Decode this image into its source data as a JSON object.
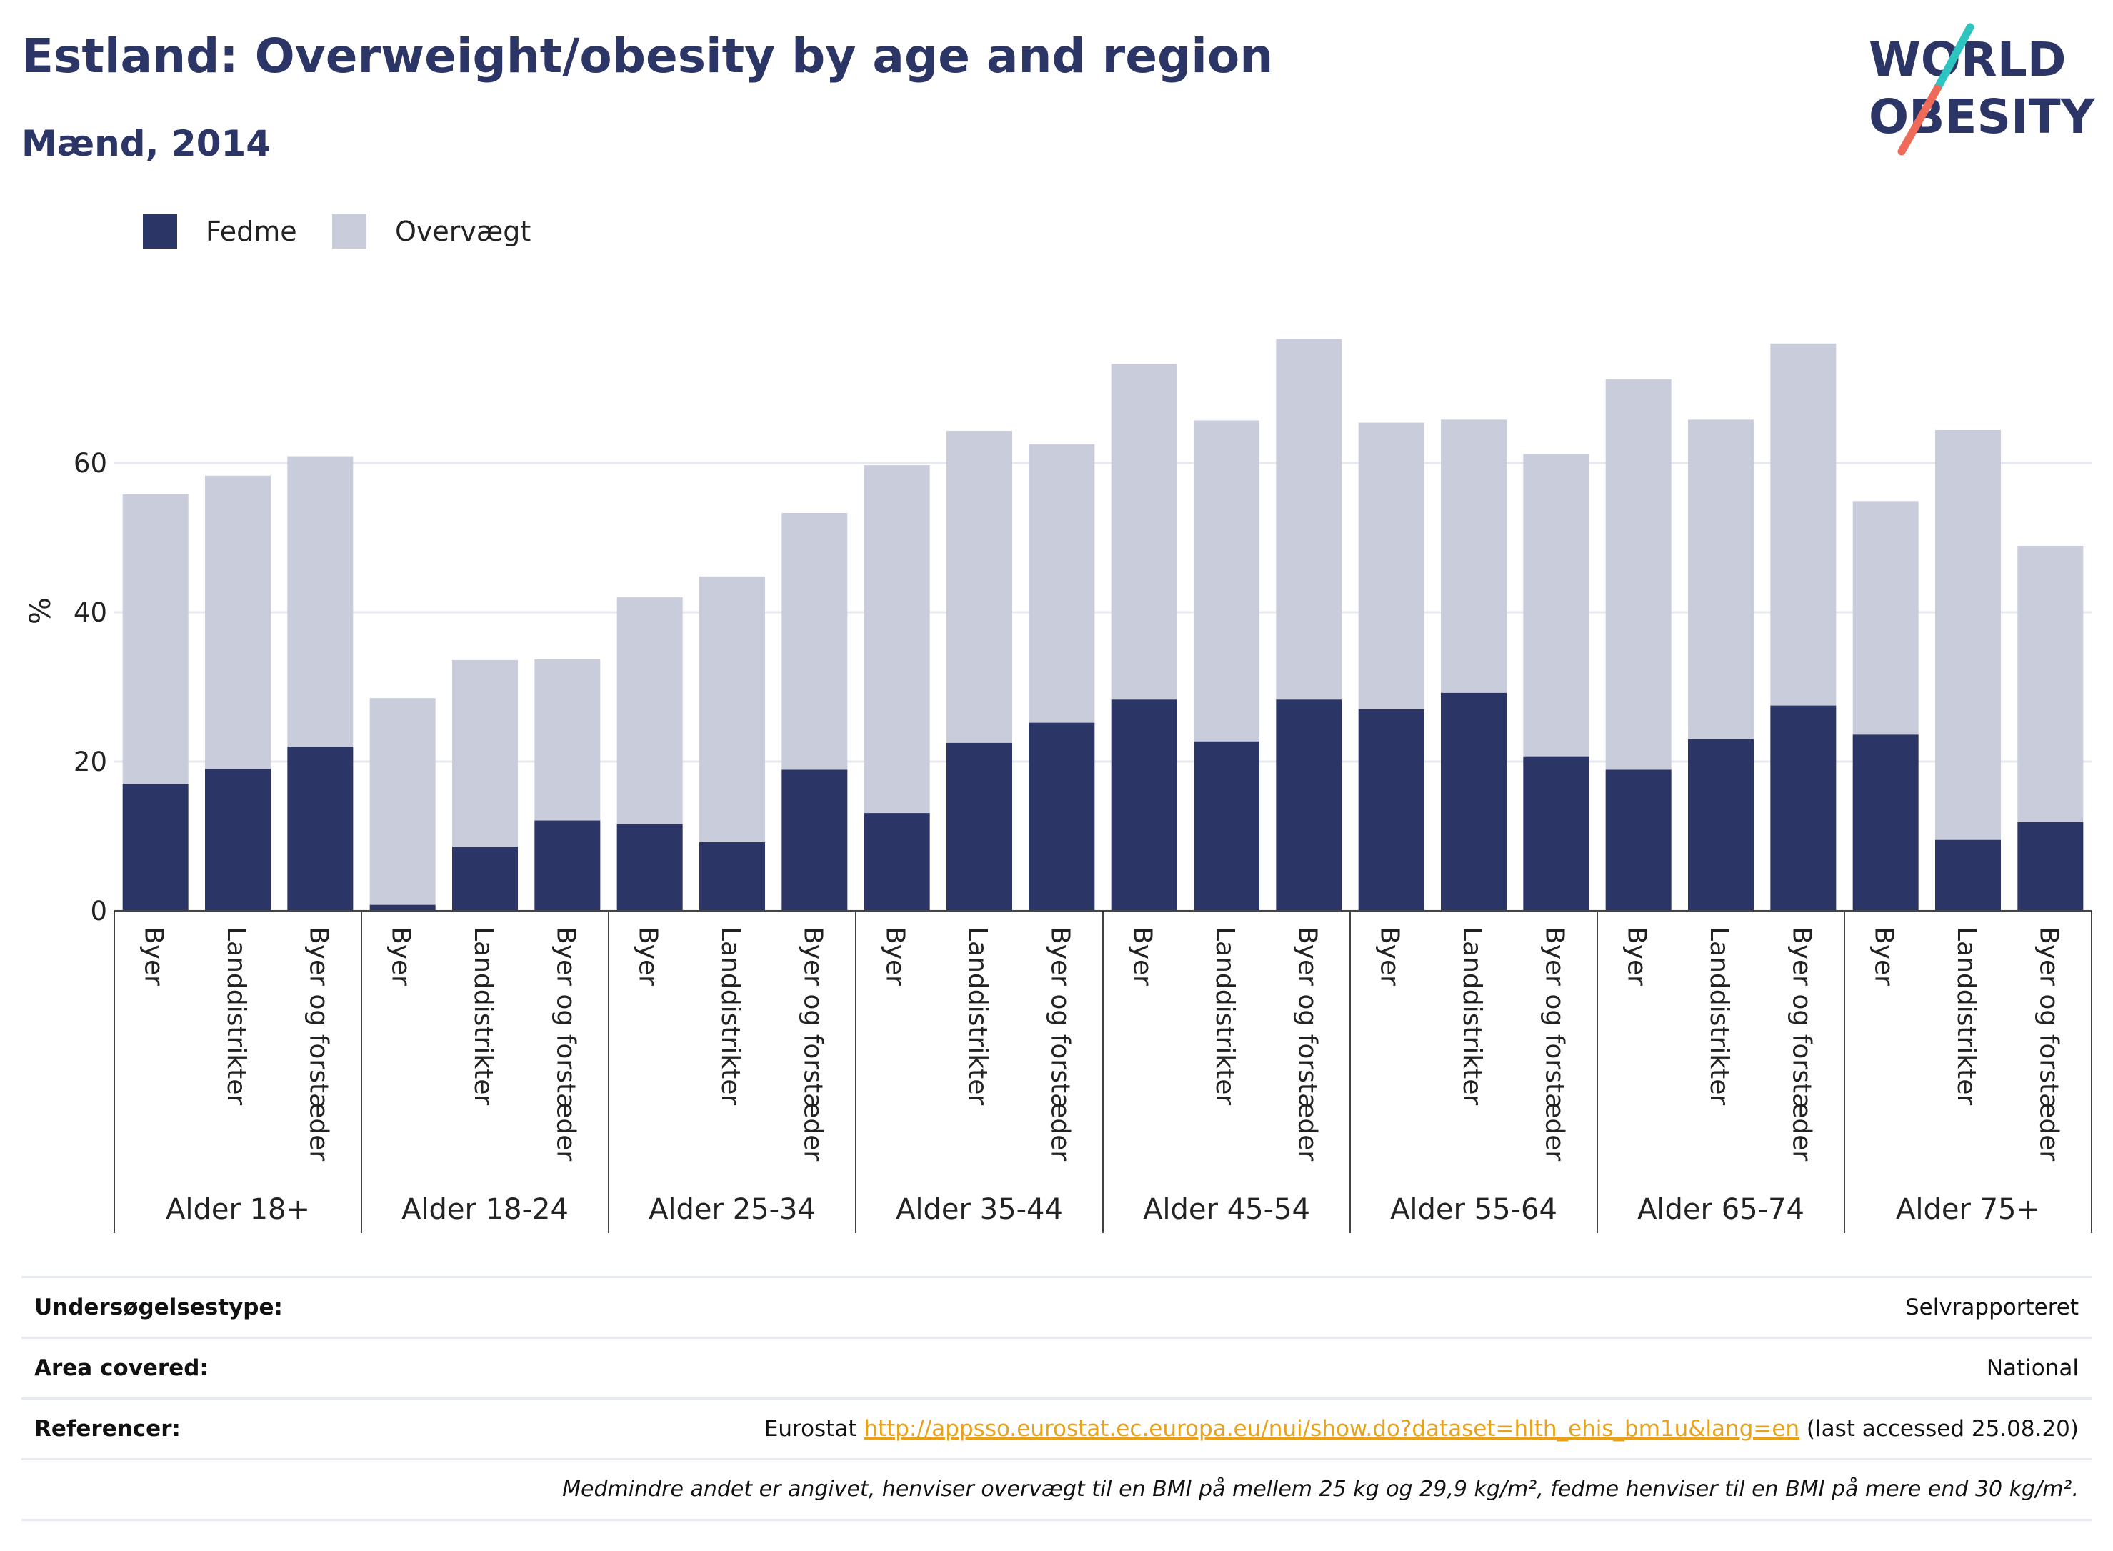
{
  "header": {
    "title": "Estland: Overweight/obesity by age and region",
    "subtitle": "Mænd, 2014"
  },
  "logo": {
    "line1": "WORLD",
    "line2": "OBESITY",
    "text_color": "#2b3566",
    "slash_color_top": "#2ec4c0",
    "slash_color_bottom": "#ee6b5a"
  },
  "colors": {
    "fedme": "#2b3566",
    "overvaegt": "#c9ccda",
    "grid": "#e6e8ef",
    "axis_text": "#222222"
  },
  "chart_data": {
    "type": "bar",
    "stacked": true,
    "ylabel": "%",
    "ylim": [
      0,
      80
    ],
    "yticks": [
      0,
      20,
      40,
      60
    ],
    "grid": true,
    "legend": [
      "Fedme",
      "Overvægt"
    ],
    "legend_position": "top-left",
    "groups": [
      {
        "label": "Alder 18+",
        "categories": [
          "Byer",
          "Landdistrikter",
          "Byer og forstæder"
        ]
      },
      {
        "label": "Alder 18-24",
        "categories": [
          "Byer",
          "Landdistrikter",
          "Byer og forstæder"
        ]
      },
      {
        "label": "Alder 25-34",
        "categories": [
          "Byer",
          "Landdistrikter",
          "Byer og forstæder"
        ]
      },
      {
        "label": "Alder 35-44",
        "categories": [
          "Byer",
          "Landdistrikter",
          "Byer og forstæder"
        ]
      },
      {
        "label": "Alder 45-54",
        "categories": [
          "Byer",
          "Landdistrikter",
          "Byer og forstæder"
        ]
      },
      {
        "label": "Alder 55-64",
        "categories": [
          "Byer",
          "Landdistrikter",
          "Byer og forstæder"
        ]
      },
      {
        "label": "Alder 65-74",
        "categories": [
          "Byer",
          "Landdistrikter",
          "Byer og forstæder"
        ]
      },
      {
        "label": "Alder 75+",
        "categories": [
          "Byer",
          "Landdistrikter",
          "Byer og forstæder"
        ]
      }
    ],
    "series": [
      {
        "name": "Fedme",
        "values": [
          17.0,
          19.0,
          22.0,
          0.8,
          8.6,
          12.1,
          11.6,
          9.2,
          18.9,
          13.1,
          22.5,
          25.2,
          28.3,
          22.7,
          28.3,
          27.0,
          29.2,
          20.7,
          18.9,
          23.0,
          27.5,
          23.6,
          9.5,
          11.9
        ]
      },
      {
        "name": "Overvægt",
        "values": [
          38.8,
          39.3,
          38.9,
          27.7,
          25.0,
          21.6,
          30.4,
          35.6,
          34.4,
          46.6,
          41.8,
          37.3,
          45.0,
          43.0,
          48.3,
          38.4,
          36.6,
          40.5,
          52.3,
          42.8,
          48.5,
          31.3,
          54.9,
          37.0
        ]
      }
    ]
  },
  "info": {
    "survey_label": "Undersøgelsestype:",
    "survey_value": "Selvrapporteret",
    "area_label": "Area covered:",
    "area_value": "National",
    "ref_label": "Referencer:",
    "ref_prefix": "Eurostat ",
    "ref_link": "http://appsso.eurostat.ec.europa.eu/nui/show.do?dataset=hlth_ehis_bm1u&lang=en",
    "ref_suffix": " (last accessed 25.08.20)",
    "note": "Medmindre andet er angivet, henviser overvægt til en BMI på mellem 25 kg og 29,9 kg/m², fedme henviser til en BMI på mere end 30 kg/m²."
  }
}
